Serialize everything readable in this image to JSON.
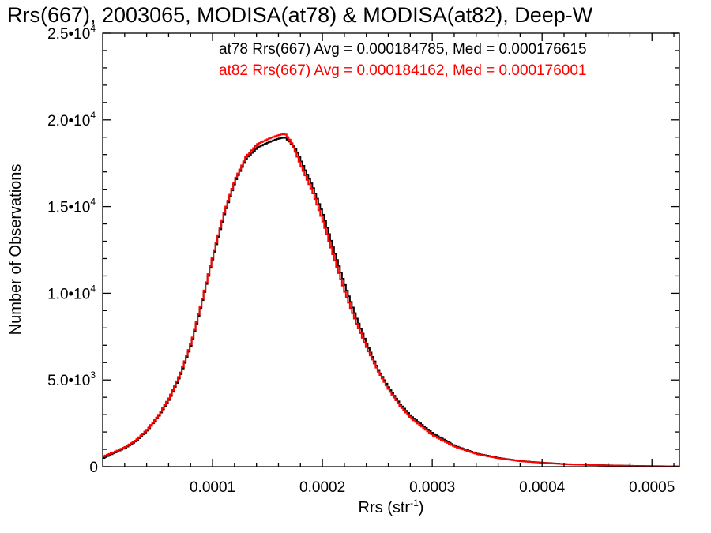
{
  "chart_data": {
    "type": "line",
    "title": "Rrs(667), 2003065, MODISA(at78) & MODISA(at82), Deep-W",
    "xlabel": "Rrs (str",
    "xlabel_sup": "-1",
    "xlabel_close": ")",
    "ylabel": "Number of Observations",
    "xlim": [
      0.0,
      0.000525
    ],
    "ylim": [
      0,
      25000
    ],
    "x_ticks": [
      {
        "value": 0.0001,
        "label": "0.0001"
      },
      {
        "value": 0.0002,
        "label": "0.0002"
      },
      {
        "value": 0.0003,
        "label": "0.0003"
      },
      {
        "value": 0.0004,
        "label": "0.0004"
      },
      {
        "value": 0.0005,
        "label": "0.0005"
      }
    ],
    "y_ticks": [
      {
        "value": 0,
        "label": "0",
        "exp": ""
      },
      {
        "value": 5000,
        "label": "5.0•10",
        "exp": "3"
      },
      {
        "value": 10000,
        "label": "1.0•10",
        "exp": "4"
      },
      {
        "value": 15000,
        "label": "1.5•10",
        "exp": "4"
      },
      {
        "value": 20000,
        "label": "2.0•10",
        "exp": "4"
      },
      {
        "value": 25000,
        "label": "2.5•10",
        "exp": "4"
      }
    ],
    "x": [
      0.0,
      1e-05,
      2e-05,
      3e-05,
      4e-05,
      5e-05,
      6e-05,
      7e-05,
      8e-05,
      9e-05,
      0.0001,
      0.00011,
      0.00012,
      0.00013,
      0.00014,
      0.00015,
      0.000158,
      0.000165,
      0.00017,
      0.000175,
      0.00018,
      0.00019,
      0.0002,
      0.00021,
      0.00022,
      0.00023,
      0.00024,
      0.00025,
      0.00026,
      0.00027,
      0.00028,
      0.0003,
      0.00032,
      0.00034,
      0.00036,
      0.00038,
      0.0004,
      0.00042,
      0.00045,
      0.00048,
      0.0005,
      0.000525
    ],
    "series": [
      {
        "name": "at78",
        "color": "#000000",
        "values": [
          500,
          800,
          1100,
          1500,
          2100,
          2900,
          3900,
          5300,
          7100,
          9600,
          12200,
          14600,
          16500,
          17800,
          18400,
          18700,
          18900,
          19000,
          18700,
          18300,
          17600,
          16200,
          14500,
          12400,
          10400,
          8600,
          7000,
          5600,
          4500,
          3600,
          2900,
          1900,
          1200,
          750,
          500,
          320,
          230,
          150,
          90,
          50,
          30,
          20
        ]
      },
      {
        "name": "at82",
        "color": "#ff0000",
        "values": [
          600,
          850,
          1150,
          1550,
          2150,
          2950,
          4000,
          5400,
          7200,
          9700,
          12300,
          14700,
          16600,
          17900,
          18600,
          18900,
          19100,
          19200,
          18800,
          18100,
          17300,
          15900,
          14100,
          12000,
          10000,
          8300,
          6800,
          5500,
          4400,
          3500,
          2800,
          1800,
          1150,
          720,
          480,
          310,
          220,
          140,
          85,
          45,
          28,
          18
        ]
      }
    ],
    "legend": [
      {
        "text": "at78 Rrs(667) Avg = 0.000184785, Med = 0.000176615",
        "color": "#000000"
      },
      {
        "text": "at82 Rrs(667) Avg = 0.000184162, Med = 0.000176001",
        "color": "#ff0000"
      }
    ],
    "legend_placement": "top-right",
    "grid": false
  }
}
